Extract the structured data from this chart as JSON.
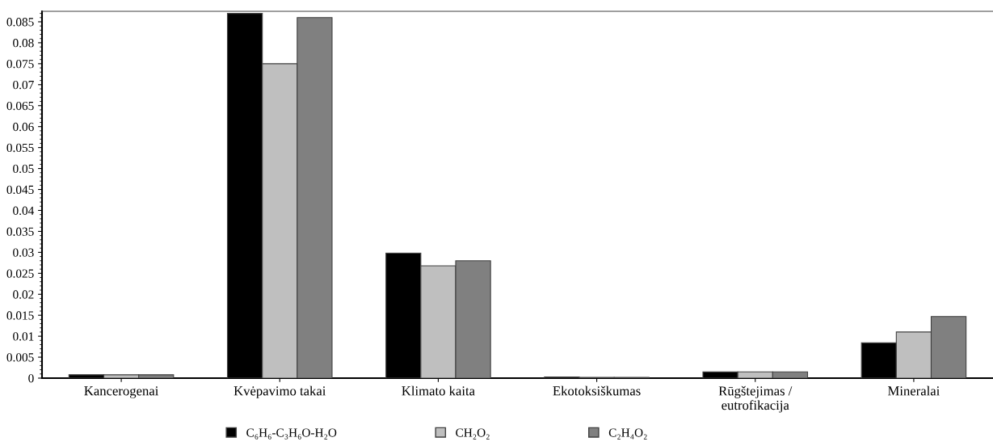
{
  "chart_data": {
    "type": "bar",
    "categories": [
      "Kancerogenai",
      "Kvėpavimo takai",
      "Klimato kaita",
      "Ekotoksiškumas",
      "Rūgštejimas /\neutrofikacija",
      "Mineralai"
    ],
    "series": [
      {
        "name": "C₆H₆-C₃H₆O-H₂O",
        "color": "#000000",
        "values": [
          0.0008,
          0.087,
          0.0298,
          0.0003,
          0.0015,
          0.0084
        ]
      },
      {
        "name": "CH₂O₂",
        "color": "#bfbfbf",
        "values": [
          0.0008,
          0.075,
          0.0268,
          0.0002,
          0.0015,
          0.011
        ]
      },
      {
        "name": "C₂H₄O₂",
        "color": "#808080",
        "values": [
          0.0008,
          0.086,
          0.028,
          0.0002,
          0.0015,
          0.0147
        ]
      }
    ],
    "ylim": [
      0,
      0.0875
    ],
    "yticks": [
      0,
      0.005,
      0.01,
      0.015,
      0.02,
      0.025,
      0.03,
      0.035,
      0.04,
      0.045,
      0.05,
      0.055,
      0.06,
      0.065,
      0.07,
      0.075,
      0.08,
      0.085
    ],
    "grid": false,
    "legend": "bottom"
  }
}
